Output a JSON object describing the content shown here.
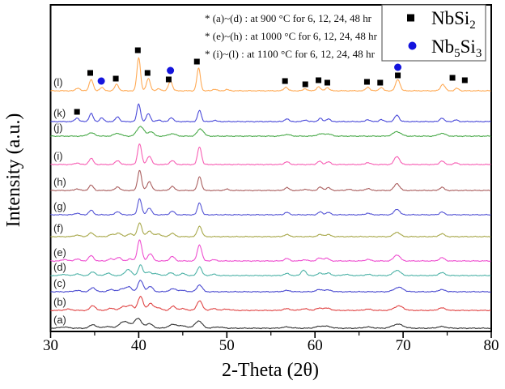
{
  "figure": {
    "background": "#ffffff",
    "frame_color": "#000000",
    "text_color": "#111111"
  },
  "annotations": {
    "lines": [
      "* (a)~(d) :  at 900 °C for 6, 12, 24, 48 hr",
      "* (e)~(h) :  at 1000 °C for 6, 12, 24, 48 hr",
      "* (i)~(l) :   at 1100 °C  for 6, 12, 24, 48 hr"
    ]
  },
  "legend": {
    "border_color": "#666666",
    "items": [
      {
        "marker": "black-square",
        "marker_color": "#000000",
        "parts": [
          {
            "t": "NbSi"
          },
          {
            "t": "2",
            "sub": true
          }
        ]
      },
      {
        "marker": "blue-circle",
        "marker_color": "#1414dd",
        "parts": [
          {
            "t": "Nb"
          },
          {
            "t": "5",
            "sub": true
          },
          {
            "t": "Si"
          },
          {
            "t": "3",
            "sub": true
          }
        ]
      }
    ]
  },
  "chart_data": {
    "type": "line",
    "title": "",
    "xlabel": "2-Theta (2θ)",
    "ylabel": "Intensity (a.u.)",
    "xlim": [
      30,
      80
    ],
    "grid": false,
    "legend_position": "top-right",
    "x_ticks": {
      "major": [
        {
          "value": 30,
          "label": "30"
        },
        {
          "value": 40,
          "label": "40"
        },
        {
          "value": 50,
          "label": "50"
        },
        {
          "value": 60,
          "label": "60"
        },
        {
          "value": 70,
          "label": "70"
        },
        {
          "value": 80,
          "label": "80"
        }
      ],
      "minor": [
        35,
        45,
        55,
        65,
        75
      ]
    },
    "series_note": "peaks are [two_theta_deg, height_px, optional_sigma_deg]; baseline is y-pixel of each offset trace",
    "series": [
      {
        "name": "(a)",
        "color": "#333333",
        "baseline": 405,
        "sigma": 0.5,
        "seed": 1,
        "peaks": [
          [
            31.5,
            1.5
          ],
          [
            34.8,
            4.5,
            0.35
          ],
          [
            36.4,
            2
          ],
          [
            38.4,
            8.5,
            0.55
          ],
          [
            39.9,
            12,
            0.4
          ],
          [
            41.2,
            5.5,
            0.4
          ],
          [
            43.9,
            4.5
          ],
          [
            45.1,
            2.5
          ],
          [
            46.8,
            9,
            0.4
          ],
          [
            49,
            1.5
          ],
          [
            56.8,
            1.5
          ],
          [
            60.5,
            2
          ],
          [
            61.4,
            2
          ],
          [
            66,
            1.5
          ],
          [
            69.4,
            5,
            0.6
          ],
          [
            74.4,
            2,
            0.5
          ]
        ]
      },
      {
        "name": "(b)",
        "color": "#e04545",
        "baseline": 383,
        "sigma": 0.4,
        "seed": 2,
        "peaks": [
          [
            32,
            1.5
          ],
          [
            34.8,
            6,
            0.3
          ],
          [
            36.9,
            2.5
          ],
          [
            38.3,
            5,
            0.35
          ],
          [
            39.1,
            6,
            0.3
          ],
          [
            40.2,
            17,
            0.3
          ],
          [
            41.3,
            8,
            0.3
          ],
          [
            42.1,
            3.5
          ],
          [
            43.9,
            5,
            0.3
          ],
          [
            45,
            2
          ],
          [
            46.9,
            12,
            0.3
          ],
          [
            48.5,
            2
          ],
          [
            50,
            1.5
          ],
          [
            56.8,
            2
          ],
          [
            58.8,
            2
          ],
          [
            60.5,
            2.5
          ],
          [
            61.4,
            2.5
          ],
          [
            66,
            1.5
          ],
          [
            69.5,
            5.5,
            0.5
          ],
          [
            74.4,
            3,
            0.4
          ]
        ]
      },
      {
        "name": "(c)",
        "color": "#4a4ad0",
        "baseline": 360,
        "sigma": 0.4,
        "seed": 3,
        "peaks": [
          [
            33,
            1.5
          ],
          [
            34.8,
            5,
            0.3
          ],
          [
            36.9,
            2.5
          ],
          [
            38.2,
            3.5
          ],
          [
            38.9,
            5.5,
            0.3
          ],
          [
            40.2,
            14,
            0.3
          ],
          [
            41.3,
            6.5,
            0.3
          ],
          [
            43.9,
            3.5
          ],
          [
            45,
            1.5
          ],
          [
            46.9,
            8.5,
            0.3
          ],
          [
            56.8,
            1.5
          ],
          [
            60.5,
            2.5
          ],
          [
            61.5,
            2
          ],
          [
            69.5,
            5.5,
            0.5
          ],
          [
            74.4,
            2.5
          ]
        ]
      },
      {
        "name": "(d)",
        "color": "#4fb3a8",
        "baseline": 340,
        "sigma": 0.3,
        "seed": 4,
        "peaks": [
          [
            31.5,
            1.5
          ],
          [
            33,
            2
          ],
          [
            34.8,
            4.5
          ],
          [
            36.5,
            3
          ],
          [
            38.8,
            7.5,
            0.35
          ],
          [
            40.2,
            13,
            0.25
          ],
          [
            41.1,
            4.5
          ],
          [
            42,
            2.5
          ],
          [
            43.6,
            3.5
          ],
          [
            45,
            2.5
          ],
          [
            46.9,
            11,
            0.25
          ],
          [
            48.5,
            1.5
          ],
          [
            56.8,
            2.5
          ],
          [
            58.7,
            7,
            0.25
          ],
          [
            60.6,
            3
          ],
          [
            61.5,
            3
          ],
          [
            63.5,
            1.5
          ],
          [
            66,
            1.5
          ],
          [
            69.3,
            6.5,
            0.4
          ],
          [
            74.4,
            3.5,
            0.35
          ]
        ]
      },
      {
        "name": "(e)",
        "color": "#ee4fd0",
        "baseline": 322,
        "sigma": 0.28,
        "seed": 5,
        "peaks": [
          [
            31.6,
            2
          ],
          [
            33,
            2.5
          ],
          [
            34.6,
            6.5
          ],
          [
            36.8,
            2.5
          ],
          [
            37.7,
            4.5
          ],
          [
            39,
            2.5
          ],
          [
            40.1,
            26,
            0.25
          ],
          [
            41.3,
            9
          ],
          [
            43.8,
            5.5
          ],
          [
            46.9,
            20,
            0.25
          ],
          [
            48.5,
            1.5
          ],
          [
            56.8,
            3
          ],
          [
            58.8,
            1.5
          ],
          [
            60.5,
            3.5
          ],
          [
            61.3,
            3.5
          ],
          [
            66,
            2
          ],
          [
            69.3,
            7.5,
            0.35
          ],
          [
            74.4,
            4,
            0.3
          ]
        ]
      },
      {
        "name": "(f)",
        "color": "#a8a84a",
        "baseline": 292,
        "sigma": 0.3,
        "seed": 6,
        "peaks": [
          [
            33,
            2
          ],
          [
            34.6,
            4.5
          ],
          [
            36.9,
            2.5
          ],
          [
            37.7,
            4.5
          ],
          [
            39,
            3.5
          ],
          [
            40.1,
            17,
            0.25
          ],
          [
            41.2,
            7
          ],
          [
            42.2,
            3.5
          ],
          [
            43.8,
            4
          ],
          [
            46.9,
            13,
            0.25
          ],
          [
            56.8,
            2.5
          ],
          [
            60.6,
            2.5
          ],
          [
            61.5,
            2.5
          ],
          [
            69.3,
            5.5,
            0.35
          ],
          [
            74.4,
            3.5
          ]
        ]
      },
      {
        "name": "(g)",
        "color": "#5555d5",
        "baseline": 265,
        "sigma": 0.25,
        "seed": 7,
        "peaks": [
          [
            33,
            2
          ],
          [
            34.6,
            5.5
          ],
          [
            37.6,
            4
          ],
          [
            40.1,
            20,
            0.22
          ],
          [
            41.2,
            8.5
          ],
          [
            43.8,
            4.5
          ],
          [
            46.9,
            15,
            0.22
          ],
          [
            56.8,
            3
          ],
          [
            60.6,
            3.5
          ],
          [
            61.5,
            3
          ],
          [
            66,
            2
          ],
          [
            69.3,
            7,
            0.3
          ],
          [
            74.4,
            3.5
          ]
        ]
      },
      {
        "name": "(h)",
        "color": "#aa5f5f",
        "baseline": 235,
        "sigma": 0.25,
        "seed": 8,
        "peaks": [
          [
            33,
            2
          ],
          [
            34.6,
            6.5
          ],
          [
            37.6,
            4.5
          ],
          [
            40.1,
            25,
            0.22
          ],
          [
            41.2,
            11
          ],
          [
            43.8,
            5
          ],
          [
            46.9,
            17,
            0.22
          ],
          [
            50,
            1.5
          ],
          [
            56.8,
            3.5
          ],
          [
            58.9,
            1.5
          ],
          [
            60.6,
            4
          ],
          [
            61.5,
            3.5
          ],
          [
            63.8,
            1.5
          ],
          [
            66,
            2.5
          ],
          [
            69.3,
            8.5,
            0.3
          ],
          [
            74.4,
            4
          ]
        ]
      },
      {
        "name": "(i)",
        "color": "#f75fb4",
        "baseline": 203,
        "sigma": 0.25,
        "seed": 9,
        "peaks": [
          [
            33,
            2
          ],
          [
            34.6,
            7.5
          ],
          [
            37.6,
            5
          ],
          [
            40.1,
            26,
            0.22
          ],
          [
            41.2,
            10.5
          ],
          [
            43.8,
            5
          ],
          [
            46.9,
            22,
            0.22
          ],
          [
            56.8,
            3.5
          ],
          [
            60.5,
            4
          ],
          [
            61.5,
            3.5
          ],
          [
            66,
            2.5
          ],
          [
            69.3,
            10,
            0.3
          ],
          [
            74.4,
            4.5
          ],
          [
            76,
            2
          ]
        ]
      },
      {
        "name": "(j)",
        "color": "#4aaa4a",
        "baseline": 168,
        "sigma": 0.4,
        "seed": 10,
        "peaks": [
          [
            34.6,
            4
          ],
          [
            37.6,
            3.5
          ],
          [
            40.2,
            12,
            0.4
          ],
          [
            41.4,
            5.5,
            0.3
          ],
          [
            43.8,
            3
          ],
          [
            47,
            9,
            0.35
          ],
          [
            56.8,
            2
          ],
          [
            60.6,
            2.5
          ],
          [
            61.5,
            2.5
          ],
          [
            69.3,
            5.5,
            0.45
          ],
          [
            74.4,
            3.5,
            0.4
          ]
        ]
      },
      {
        "name": "(k)",
        "color": "#4a4ad9",
        "baseline": 150,
        "sigma": 0.22,
        "seed": 11,
        "peaks": [
          [
            33,
            4.5
          ],
          [
            34.6,
            10
          ],
          [
            35.8,
            4.5
          ],
          [
            37.6,
            6
          ],
          [
            40,
            22,
            0.2
          ],
          [
            41.1,
            10
          ],
          [
            42.3,
            2
          ],
          [
            43.7,
            5
          ],
          [
            46.9,
            14,
            0.2
          ],
          [
            48.6,
            1.5
          ],
          [
            56.8,
            3.5
          ],
          [
            58.9,
            2
          ],
          [
            60.6,
            4
          ],
          [
            61.5,
            3.5
          ],
          [
            66,
            2.5
          ],
          [
            67.5,
            2.5
          ],
          [
            69.3,
            8,
            0.25
          ],
          [
            74.4,
            4.5
          ],
          [
            76,
            2
          ]
        ]
      },
      {
        "name": "(l)",
        "color": "#ffaa55",
        "baseline": 112,
        "sigma": 0.22,
        "seed": 12,
        "peaks": [
          [
            33.1,
            3.5
          ],
          [
            34.6,
            14
          ],
          [
            35.8,
            4
          ],
          [
            37.5,
            8
          ],
          [
            40,
            41,
            0.2
          ],
          [
            41.1,
            15
          ],
          [
            42.3,
            2.5
          ],
          [
            43.6,
            12
          ],
          [
            46.8,
            28,
            0.2
          ],
          [
            48.6,
            2
          ],
          [
            50,
            1.5
          ],
          [
            56.7,
            4.5
          ],
          [
            58.9,
            2.5
          ],
          [
            60.4,
            5
          ],
          [
            61.4,
            4
          ],
          [
            66,
            4.5
          ],
          [
            67.5,
            4
          ],
          [
            69.4,
            14,
            0.25
          ],
          [
            74.5,
            8,
            0.25
          ],
          [
            76.1,
            3
          ]
        ]
      }
    ],
    "phase_markers": {
      "note": "markers are [two_theta_deg, y_pixel]",
      "nbsi2_squares_color": "#000000",
      "nb5si3_circles_color": "#1414dd",
      "nbsi2_squares": [
        [
          33.0,
          138
        ],
        [
          34.5,
          90
        ],
        [
          37.4,
          97
        ],
        [
          39.9,
          62
        ],
        [
          41.0,
          90
        ],
        [
          43.4,
          98
        ],
        [
          46.6,
          76
        ],
        [
          56.6,
          100
        ],
        [
          58.9,
          104
        ],
        [
          60.4,
          99
        ],
        [
          61.4,
          102
        ],
        [
          65.9,
          101
        ],
        [
          67.4,
          102
        ],
        [
          69.4,
          93
        ],
        [
          75.6,
          96
        ],
        [
          77.0,
          99
        ]
      ],
      "nb5si3_circles": [
        [
          35.75,
          100
        ],
        [
          43.6,
          87
        ],
        [
          69.4,
          83
        ]
      ]
    }
  }
}
